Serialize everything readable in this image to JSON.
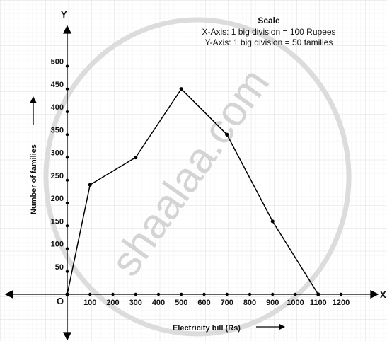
{
  "scale": {
    "title": "Scale",
    "x_line": "X-Axis: 1 big division = 100 Rupees",
    "y_line": "Y-Axis: 1 big division = 50 families"
  },
  "watermark": "shaalaa.com",
  "chart_data": {
    "type": "line",
    "xlabel": "Electricity bill (Rs)",
    "ylabel": "Number of families",
    "x_axis_letter": "X",
    "y_axis_letter": "Y",
    "origin_label": "O",
    "xlim": [
      0,
      1300
    ],
    "ylim": [
      0,
      550
    ],
    "x_ticks": [
      100,
      200,
      300,
      400,
      500,
      600,
      700,
      800,
      900,
      1000,
      1100,
      1200
    ],
    "y_ticks": [
      50,
      100,
      150,
      200,
      250,
      300,
      350,
      400,
      450,
      500
    ],
    "grid": true,
    "x": [
      0,
      100,
      300,
      500,
      700,
      900,
      1100
    ],
    "values": [
      0,
      240,
      300,
      450,
      350,
      160,
      0
    ],
    "line_color": "#000000"
  }
}
